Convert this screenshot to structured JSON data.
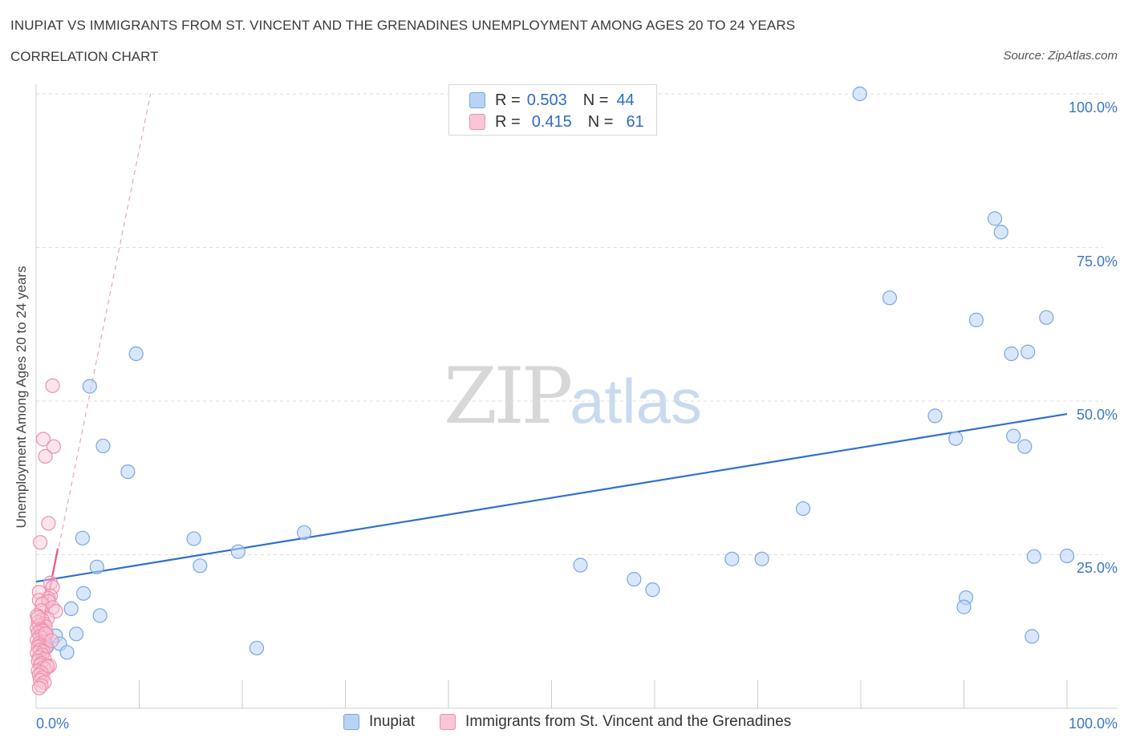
{
  "header": {
    "title": "INUPIAT VS IMMIGRANTS FROM ST. VINCENT AND THE GRENADINES UNEMPLOYMENT AMONG AGES 20 TO 24 YEARS",
    "subtitle": "CORRELATION CHART",
    "source": "Source: ZipAtlas.com"
  },
  "watermark": {
    "zip": "ZIP",
    "atlas": "atlas"
  },
  "legend": {
    "r_label": "R =",
    "n_label": "N =",
    "rows": [
      {
        "r": "0.503",
        "n": "44"
      },
      {
        "r": "0.415",
        "n": "61"
      }
    ]
  },
  "colors": {
    "blue_fill": "#b9d3f5",
    "blue_stroke": "#7aa7e0",
    "blue_line": "#2f6fcc",
    "pink_fill": "#f8c6d5",
    "pink_stroke": "#ee8fae",
    "pink_line": "#e8588a",
    "grid": "#dddddd",
    "axis_text": "#3b77c6"
  },
  "chart_data": {
    "type": "scatter",
    "title": "INUPIAT VS IMMIGRANTS FROM ST. VINCENT AND THE GRENADINES UNEMPLOYMENT AMONG AGES 20 TO 24 YEARS",
    "xlabel": "",
    "ylabel": "Unemployment Among Ages 20 to 24 years",
    "xlim": [
      0,
      100
    ],
    "ylim": [
      0,
      100
    ],
    "x_tick_labels": [
      "0.0%",
      "100.0%"
    ],
    "y_ticks": [
      25,
      50,
      75,
      100
    ],
    "y_tick_labels": [
      "25.0%",
      "50.0%",
      "75.0%",
      "100.0%"
    ],
    "grid": true,
    "series": [
      {
        "name": "Inupiat",
        "R": 0.503,
        "N": 44,
        "trend": {
          "x": [
            0,
            100
          ],
          "y": [
            20.6,
            47.9
          ],
          "style": "solid"
        },
        "points": [
          [
            79.9,
            100.0
          ],
          [
            93.0,
            79.7
          ],
          [
            93.6,
            77.5
          ],
          [
            82.8,
            66.8
          ],
          [
            91.2,
            63.2
          ],
          [
            98.0,
            63.6
          ],
          [
            94.6,
            57.7
          ],
          [
            96.2,
            58.0
          ],
          [
            9.7,
            57.7
          ],
          [
            5.2,
            52.4
          ],
          [
            87.2,
            47.6
          ],
          [
            89.2,
            43.9
          ],
          [
            94.8,
            44.3
          ],
          [
            95.9,
            42.6
          ],
          [
            6.5,
            42.7
          ],
          [
            8.9,
            38.5
          ],
          [
            74.4,
            32.5
          ],
          [
            26.0,
            28.6
          ],
          [
            4.5,
            27.7
          ],
          [
            15.3,
            27.6
          ],
          [
            19.6,
            25.5
          ],
          [
            96.8,
            24.7
          ],
          [
            100.0,
            24.8
          ],
          [
            67.5,
            24.3
          ],
          [
            70.4,
            24.3
          ],
          [
            5.9,
            23.0
          ],
          [
            15.9,
            23.2
          ],
          [
            52.8,
            23.3
          ],
          [
            58.0,
            21.0
          ],
          [
            59.8,
            19.3
          ],
          [
            4.6,
            18.7
          ],
          [
            90.2,
            18.0
          ],
          [
            90.0,
            16.5
          ],
          [
            3.4,
            16.2
          ],
          [
            6.2,
            15.1
          ],
          [
            1.9,
            11.8
          ],
          [
            3.9,
            12.1
          ],
          [
            96.6,
            11.7
          ],
          [
            2.3,
            10.5
          ],
          [
            1.0,
            9.9
          ],
          [
            3.0,
            9.1
          ],
          [
            21.4,
            9.8
          ],
          [
            0.8,
            11.0
          ],
          [
            0.4,
            12.6
          ]
        ]
      },
      {
        "name": "Immigrants from St. Vincent and the Grenadines",
        "R": 0.415,
        "N": 61,
        "trend": {
          "x": [
            0,
            2.1
          ],
          "y": [
            8.0,
            26.0
          ],
          "style": "solid",
          "extended": {
            "x": [
              0,
              11.1
            ],
            "y": [
              8.0,
              100.0
            ],
            "style": "dashed"
          }
        },
        "points": [
          [
            1.6,
            52.5
          ],
          [
            0.7,
            43.8
          ],
          [
            1.7,
            42.6
          ],
          [
            0.9,
            41.0
          ],
          [
            1.2,
            30.1
          ],
          [
            0.4,
            27.0
          ],
          [
            1.4,
            20.4
          ],
          [
            1.6,
            19.7
          ],
          [
            0.3,
            18.9
          ],
          [
            1.4,
            18.3
          ],
          [
            1.2,
            17.9
          ],
          [
            0.3,
            17.6
          ],
          [
            1.2,
            17.4
          ],
          [
            0.6,
            17.0
          ],
          [
            1.6,
            16.4
          ],
          [
            1.9,
            15.8
          ],
          [
            0.5,
            15.9
          ],
          [
            0.1,
            15.1
          ],
          [
            1.1,
            14.6
          ],
          [
            0.6,
            14.4
          ],
          [
            0.2,
            14.0
          ],
          [
            0.8,
            13.7
          ],
          [
            0.3,
            13.5
          ],
          [
            0.9,
            13.3
          ],
          [
            0.1,
            13.0
          ],
          [
            0.5,
            12.9
          ],
          [
            0.7,
            12.6
          ],
          [
            0.2,
            12.3
          ],
          [
            1.0,
            12.0
          ],
          [
            0.4,
            11.7
          ],
          [
            0.6,
            11.4
          ],
          [
            0.1,
            11.1
          ],
          [
            0.8,
            10.8
          ],
          [
            0.3,
            10.6
          ],
          [
            0.5,
            10.3
          ],
          [
            0.2,
            10.0
          ],
          [
            0.9,
            9.8
          ],
          [
            0.4,
            9.5
          ],
          [
            0.7,
            9.2
          ],
          [
            0.1,
            9.0
          ],
          [
            0.6,
            8.7
          ],
          [
            0.3,
            8.3
          ],
          [
            0.8,
            8.0
          ],
          [
            0.2,
            7.7
          ],
          [
            0.5,
            7.3
          ],
          [
            0.4,
            7.0
          ],
          [
            1.3,
            6.9
          ],
          [
            0.7,
            6.6
          ],
          [
            0.9,
            6.4
          ],
          [
            0.2,
            6.1
          ],
          [
            1.1,
            6.8
          ],
          [
            0.5,
            5.8
          ],
          [
            0.3,
            5.4
          ],
          [
            0.6,
            5.0
          ],
          [
            0.4,
            4.6
          ],
          [
            0.8,
            4.2
          ],
          [
            0.5,
            3.7
          ],
          [
            0.3,
            3.3
          ],
          [
            0.9,
            12.2
          ],
          [
            1.5,
            11.0
          ],
          [
            0.2,
            14.8
          ]
        ]
      }
    ]
  }
}
